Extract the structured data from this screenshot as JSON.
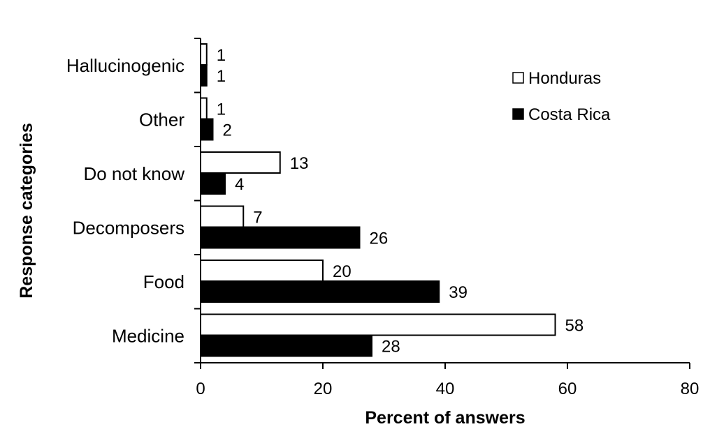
{
  "chart_data": {
    "type": "bar",
    "orientation": "horizontal",
    "categories": [
      "Hallucinogenic",
      "Other",
      "Do not know",
      "Decomposers",
      "Food",
      "Medicine"
    ],
    "series": [
      {
        "name": "Honduras",
        "values": [
          1,
          1,
          13,
          7,
          20,
          58
        ],
        "fill": "#ffffff",
        "stroke": "#000000"
      },
      {
        "name": "Costa Rica",
        "values": [
          1,
          2,
          4,
          26,
          39,
          28
        ],
        "fill": "#000000",
        "stroke": "#000000"
      }
    ],
    "xlabel": "Percent of answers",
    "ylabel": "Response categories",
    "xlim": [
      0,
      80
    ],
    "xticks": [
      0,
      20,
      40,
      60,
      80
    ],
    "grid": false,
    "legend_position": "top-right",
    "data_labels": true
  }
}
